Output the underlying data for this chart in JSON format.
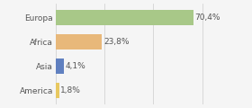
{
  "categories": [
    "Europa",
    "Africa",
    "Asia",
    "America"
  ],
  "values": [
    70.4,
    23.8,
    4.1,
    1.8
  ],
  "labels": [
    "70,4%",
    "23,8%",
    "4,1%",
    "1,8%"
  ],
  "bar_colors": [
    "#a8c888",
    "#e8b87a",
    "#6080c0",
    "#e8c860"
  ],
  "background_color": "#f5f5f5",
  "xlim": [
    0,
    85
  ],
  "bar_height": 0.62,
  "label_fontsize": 6.5,
  "tick_fontsize": 6.5,
  "grid_color": "#cccccc",
  "grid_xticks": [
    0,
    25,
    50,
    75
  ]
}
